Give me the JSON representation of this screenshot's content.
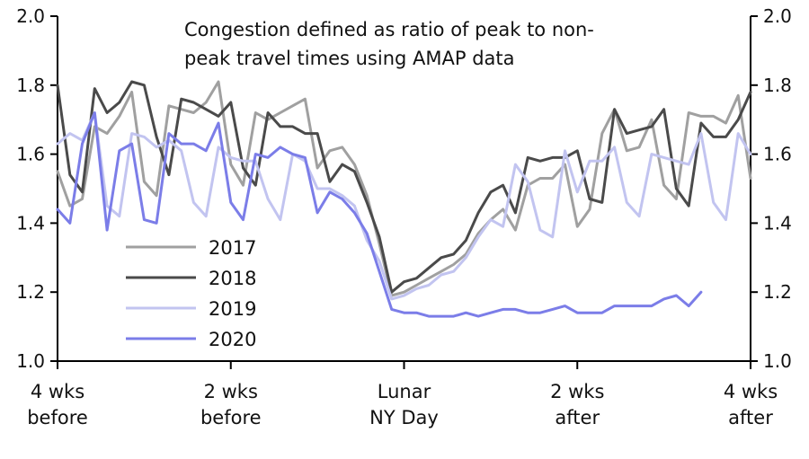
{
  "chart_data": {
    "type": "line",
    "annotation_lines": [
      "Congestion defined as ratio of peak to non-",
      "peak travel times using AMAP data"
    ],
    "x_range": [
      -28,
      28
    ],
    "ylim": [
      1.0,
      2.0
    ],
    "y_ticks": [
      1.0,
      1.2,
      1.4,
      1.6,
      1.8,
      2.0
    ],
    "y_tick_labels": [
      "1.0",
      "1.2",
      "1.4",
      "1.6",
      "1.8",
      "2.0"
    ],
    "x_ticks": [
      {
        "x": -28,
        "line1": "4 wks",
        "line2": "before"
      },
      {
        "x": -14,
        "line1": "2 wks",
        "line2": "before"
      },
      {
        "x": 0,
        "line1": "Lunar",
        "line2": "NY Day"
      },
      {
        "x": 14,
        "line1": "2 wks",
        "line2": "after"
      },
      {
        "x": 28,
        "line1": "4 wks",
        "line2": "after"
      }
    ],
    "legend": [
      "2017",
      "2018",
      "2019",
      "2020"
    ],
    "series": [
      {
        "name": "2017",
        "color": "#a0a0a0",
        "x_start": -28,
        "values": [
          1.55,
          1.45,
          1.47,
          1.68,
          1.66,
          1.71,
          1.78,
          1.52,
          1.48,
          1.74,
          1.73,
          1.72,
          1.75,
          1.81,
          1.57,
          1.51,
          1.72,
          1.7,
          1.72,
          1.74,
          1.76,
          1.56,
          1.61,
          1.62,
          1.57,
          1.48,
          1.34,
          1.19,
          1.2,
          1.22,
          1.24,
          1.26,
          1.28,
          1.31,
          1.37,
          1.41,
          1.44,
          1.38,
          1.51,
          1.53,
          1.53,
          1.57,
          1.39,
          1.44,
          1.66,
          1.73,
          1.61,
          1.62,
          1.7,
          1.51,
          1.47,
          1.72,
          1.71,
          1.71,
          1.69,
          1.77,
          1.53
        ]
      },
      {
        "name": "2018",
        "color": "#4a4a4a",
        "x_start": -28,
        "values": [
          1.8,
          1.54,
          1.49,
          1.79,
          1.72,
          1.75,
          1.81,
          1.8,
          1.65,
          1.54,
          1.76,
          1.75,
          1.73,
          1.71,
          1.75,
          1.56,
          1.51,
          1.72,
          1.68,
          1.68,
          1.66,
          1.66,
          1.52,
          1.57,
          1.55,
          1.46,
          1.36,
          1.2,
          1.23,
          1.24,
          1.27,
          1.3,
          1.31,
          1.35,
          1.43,
          1.49,
          1.51,
          1.43,
          1.59,
          1.58,
          1.59,
          1.59,
          1.61,
          1.47,
          1.46,
          1.73,
          1.66,
          1.67,
          1.68,
          1.73,
          1.5,
          1.45,
          1.69,
          1.65,
          1.65,
          1.7,
          1.78
        ]
      },
      {
        "name": "2019",
        "color": "#c2c4f0",
        "x_start": -28,
        "values": [
          1.63,
          1.66,
          1.64,
          1.72,
          1.45,
          1.42,
          1.66,
          1.65,
          1.62,
          1.64,
          1.61,
          1.46,
          1.42,
          1.62,
          1.59,
          1.58,
          1.58,
          1.47,
          1.41,
          1.6,
          1.58,
          1.5,
          1.5,
          1.48,
          1.45,
          1.35,
          1.29,
          1.18,
          1.19,
          1.21,
          1.22,
          1.25,
          1.26,
          1.3,
          1.36,
          1.41,
          1.39,
          1.57,
          1.52,
          1.38,
          1.36,
          1.61,
          1.49,
          1.58,
          1.58,
          1.62,
          1.46,
          1.42,
          1.6,
          1.59,
          1.58,
          1.57,
          1.66,
          1.46,
          1.41,
          1.66,
          1.6
        ]
      },
      {
        "name": "2020",
        "color": "#7b7de8",
        "x_start": -28,
        "values": [
          1.44,
          1.4,
          1.63,
          1.72,
          1.38,
          1.61,
          1.63,
          1.41,
          1.4,
          1.66,
          1.63,
          1.63,
          1.61,
          1.69,
          1.46,
          1.41,
          1.6,
          1.59,
          1.62,
          1.6,
          1.59,
          1.43,
          1.49,
          1.47,
          1.43,
          1.37,
          1.26,
          1.15,
          1.14,
          1.14,
          1.13,
          1.13,
          1.13,
          1.14,
          1.13,
          1.14,
          1.15,
          1.15,
          1.14,
          1.14,
          1.15,
          1.16,
          1.14,
          1.14,
          1.14,
          1.16,
          1.16,
          1.16,
          1.16,
          1.18,
          1.19,
          1.16,
          1.2
        ]
      }
    ]
  }
}
